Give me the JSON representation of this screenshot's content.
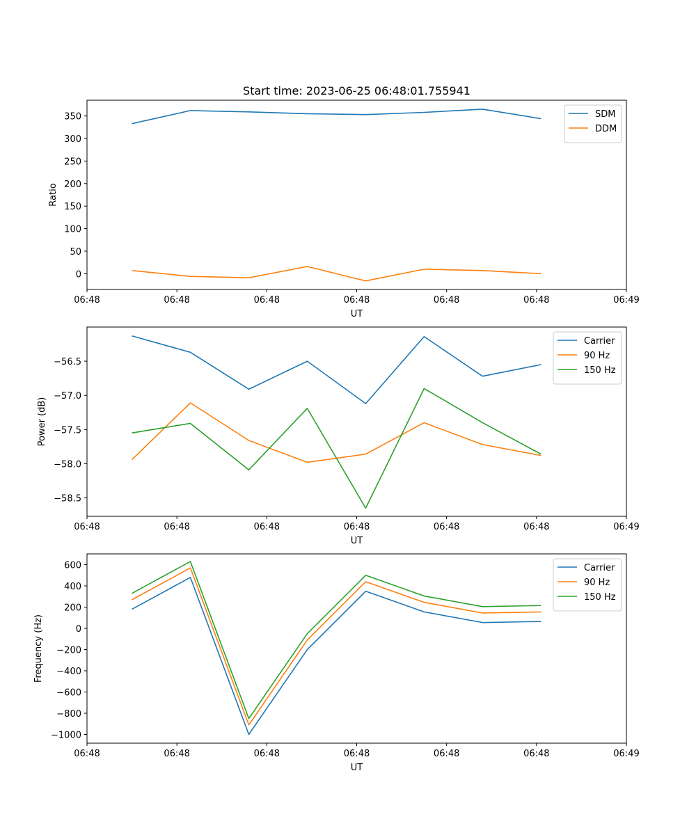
{
  "title": "Start time: 2023-06-25 06:48:01.755941",
  "chart_data": [
    {
      "type": "line",
      "title": "Start time: 2023-06-25 06:48:01.755941",
      "xlabel": "UT",
      "ylabel": "Ratio",
      "xtick_labels": [
        "06:48",
        "06:48",
        "06:48",
        "06:48",
        "06:48",
        "06:48",
        "06:49"
      ],
      "xlim": [
        0,
        12
      ],
      "ylim": [
        -35,
        385
      ],
      "yticks": [
        0,
        50,
        100,
        150,
        200,
        250,
        300,
        350
      ],
      "ytick_labels": [
        "0",
        "50",
        "100",
        "150",
        "200",
        "250",
        "300",
        "350"
      ],
      "x": [
        1,
        2.3,
        3.6,
        4.9,
        6.2,
        7.5,
        8.8,
        10.1
      ],
      "legend": "top-right",
      "grid": false,
      "series": [
        {
          "name": "SDM",
          "color": "#1f77b4",
          "values": [
            333,
            362,
            359,
            355,
            353,
            358,
            365,
            344
          ]
        },
        {
          "name": "DDM",
          "color": "#ff7f0e",
          "values": [
            7,
            -6,
            -9,
            16,
            -16,
            10,
            7,
            0
          ]
        }
      ]
    },
    {
      "type": "line",
      "xlabel": "UT",
      "ylabel": "Power (dB)",
      "xtick_labels": [
        "06:48",
        "06:48",
        "06:48",
        "06:48",
        "06:48",
        "06:48",
        "06:49"
      ],
      "xlim": [
        0,
        12
      ],
      "ylim": [
        -58.77,
        -56.0
      ],
      "yticks": [
        -58.5,
        -58.0,
        -57.5,
        -57.0,
        -56.5
      ],
      "ytick_labels": [
        "−58.5",
        "−58.0",
        "−57.5",
        "−57.0",
        "−56.5"
      ],
      "x": [
        1,
        2.3,
        3.6,
        4.9,
        6.2,
        7.5,
        8.8,
        10.1
      ],
      "legend": "top-right",
      "grid": false,
      "series": [
        {
          "name": "Carrier",
          "color": "#1f77b4",
          "values": [
            -56.13,
            -56.37,
            -56.91,
            -56.5,
            -57.12,
            -56.14,
            -56.72,
            -56.55
          ]
        },
        {
          "name": "90 Hz",
          "color": "#ff7f0e",
          "values": [
            -57.94,
            -57.11,
            -57.66,
            -57.98,
            -57.86,
            -57.4,
            -57.72,
            -57.88
          ]
        },
        {
          "name": "150 Hz",
          "color": "#2ca02c",
          "values": [
            -57.55,
            -57.41,
            -58.09,
            -57.19,
            -58.65,
            -56.9,
            -57.4,
            -57.86
          ]
        }
      ]
    },
    {
      "type": "line",
      "xlabel": "UT",
      "ylabel": "Frequency (Hz)",
      "xtick_labels": [
        "06:48",
        "06:48",
        "06:48",
        "06:48",
        "06:48",
        "06:48",
        "06:49"
      ],
      "xlim": [
        0,
        12
      ],
      "ylim": [
        -1082,
        702
      ],
      "yticks": [
        -1000,
        -800,
        -600,
        -400,
        -200,
        0,
        200,
        400,
        600
      ],
      "ytick_labels": [
        "−1000",
        "−800",
        "−600",
        "−400",
        "−200",
        "0",
        "200",
        "400",
        "600"
      ],
      "x": [
        1,
        2.3,
        3.6,
        4.9,
        6.2,
        7.5,
        8.8,
        10.1
      ],
      "legend": "top-right",
      "grid": false,
      "series": [
        {
          "name": "Carrier",
          "color": "#1f77b4",
          "values": [
            180,
            480,
            -1000,
            -200,
            350,
            155,
            55,
            65
          ]
        },
        {
          "name": "90 Hz",
          "color": "#ff7f0e",
          "values": [
            270,
            570,
            -910,
            -110,
            440,
            245,
            145,
            155
          ]
        },
        {
          "name": "150 Hz",
          "color": "#2ca02c",
          "values": [
            330,
            630,
            -850,
            -50,
            500,
            305,
            205,
            215
          ]
        }
      ]
    }
  ]
}
